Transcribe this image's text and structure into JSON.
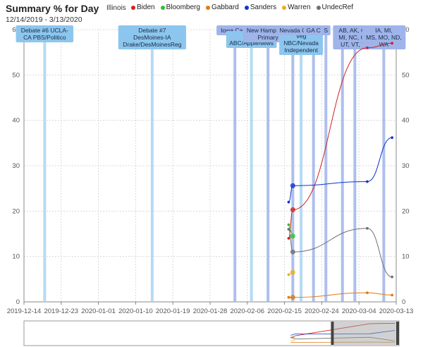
{
  "header": {
    "title": "Summary % for Day",
    "subtitle": "12/14/2019 - 3/13/2020",
    "state": "Illinois"
  },
  "colors": {
    "Biden": "#d42020",
    "Bloomberg": "#2ec02e",
    "Gabbard": "#e07a10",
    "Sanders": "#1035d0",
    "Warren": "#e8b020",
    "UndecRef": "#707070"
  },
  "chart_data": {
    "type": "line",
    "title": "Summary % for Day",
    "subtitle": "12/14/2019 - 3/13/2020",
    "xlim": [
      "2019-12-14",
      "2020-03-13"
    ],
    "ylim": [
      0,
      60
    ],
    "x_ticks": [
      "2019-12-14",
      "2019-12-23",
      "2020-01-01",
      "2020-01-10",
      "2020-01-19",
      "2020-01-28",
      "2020-02-06",
      "2020-02-15",
      "2020-02-24",
      "2020-03-04",
      "2020-03-13"
    ],
    "y_ticks": [
      0,
      10,
      20,
      30,
      40,
      50,
      60
    ],
    "grid": true,
    "legend_position": "top",
    "series": [
      {
        "name": "Biden",
        "points": [
          [
            "2020-02-16",
            14
          ],
          [
            "2020-02-17",
            20.3
          ],
          [
            "2020-03-06",
            56
          ],
          [
            "2020-03-12",
            57
          ]
        ]
      },
      {
        "name": "Bloomberg",
        "points": [
          [
            "2020-02-16",
            17
          ],
          [
            "2020-02-17",
            14.5
          ]
        ]
      },
      {
        "name": "Gabbard",
        "points": [
          [
            "2020-02-16",
            1
          ],
          [
            "2020-02-17",
            1
          ],
          [
            "2020-03-06",
            2
          ],
          [
            "2020-03-12",
            1.5
          ]
        ]
      },
      {
        "name": "Sanders",
        "points": [
          [
            "2020-02-16",
            22
          ],
          [
            "2020-02-17",
            25.6
          ],
          [
            "2020-03-06",
            26.5
          ],
          [
            "2020-03-12",
            36.2
          ]
        ]
      },
      {
        "name": "Warren",
        "points": [
          [
            "2020-02-16",
            6
          ],
          [
            "2020-02-17",
            6.5
          ]
        ]
      },
      {
        "name": "UndecRef",
        "points": [
          [
            "2020-02-16",
            16
          ],
          [
            "2020-02-17",
            11
          ],
          [
            "2020-03-06",
            16.2
          ],
          [
            "2020-03-12",
            5.5
          ]
        ]
      }
    ],
    "events": [
      {
        "date": "2019-12-19",
        "label": [
          "Debate #6 UCLA-",
          "CA PBS/Politico"
        ],
        "style": "light"
      },
      {
        "date": "2020-01-14",
        "label": [
          "Debate #7",
          "DesMoines-IA",
          "Drake/DesMoinesReg"
        ],
        "style": "light"
      },
      {
        "date": "2020-02-03",
        "label": [
          "Iowa Cauc"
        ],
        "style": "dark"
      },
      {
        "date": "2020-02-07",
        "label": [
          "Mar",
          "ABC/AppleNews"
        ],
        "style": "light"
      },
      {
        "date": "2020-02-11",
        "label": [
          "New Hampshire",
          "Primary"
        ],
        "style": "dark"
      },
      {
        "date": "2020-02-19",
        "label": [
          "Veg",
          "NBC/Nevada",
          "Independent"
        ],
        "style": "light"
      },
      {
        "date": "2020-02-17",
        "label": [
          "Nevada C"
        ],
        "style": "dark"
      },
      {
        "date": "2020-02-22",
        "label": [
          "GA C"
        ],
        "style": "dark"
      },
      {
        "date": "2020-02-25",
        "label": [
          "S"
        ],
        "style": "dark"
      },
      {
        "date": "2020-02-29",
        "label": [],
        "style": "dark"
      },
      {
        "date": "2020-03-03",
        "label": [
          "AB, AK, CA,",
          "MI, NC, OK,",
          "UT, VT, VA"
        ],
        "style": "dark"
      },
      {
        "date": "2020-03-10",
        "label": [
          "IA, MI,",
          "MS, MO, ND,",
          "WA"
        ],
        "style": "dark"
      }
    ]
  }
}
